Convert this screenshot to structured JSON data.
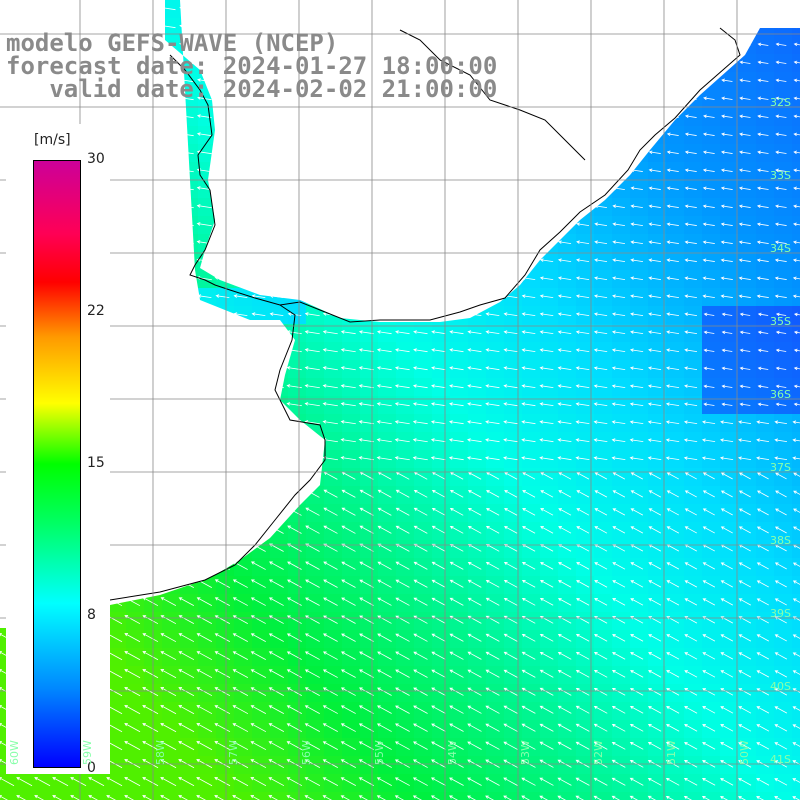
{
  "header": {
    "line1": "modelo GEFS-WAVE (NCEP)",
    "line2": "forecast date: 2024-01-27 18:00:00",
    "line3": "   valid date: 2024-02-02 21:00:00"
  },
  "colorbar": {
    "unit": "[m/s]",
    "ticks": [
      "30",
      "22",
      "15",
      "8",
      "0"
    ],
    "min": 0,
    "max": 30
  },
  "lat_labels": [
    "32S",
    "33S",
    "34S",
    "35S",
    "36S",
    "37S",
    "38S",
    "39S",
    "40S",
    "41S"
  ],
  "lon_labels": [
    "60W",
    "59W",
    "58W",
    "57W",
    "56W",
    "55W",
    "54W",
    "53W",
    "52W",
    "51W",
    "50W"
  ],
  "colors": {
    "land": "#ffffff",
    "coast": "#000000",
    "grid": "#888888",
    "arrow": "#ffffff",
    "title": "#8a8a8a"
  }
}
